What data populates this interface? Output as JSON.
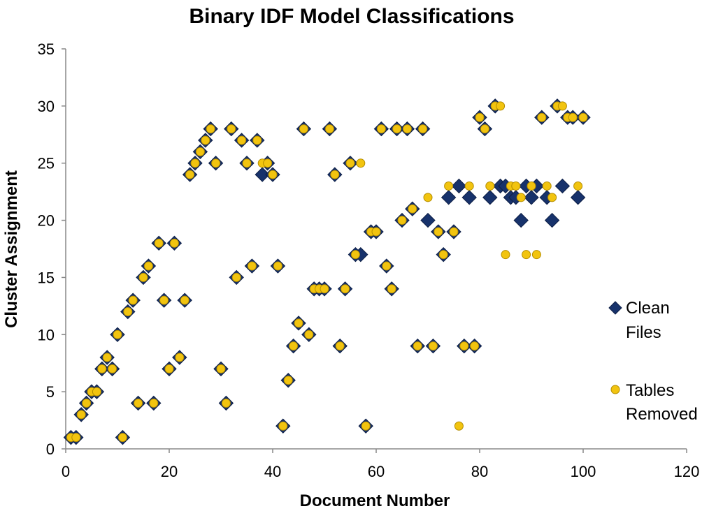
{
  "chart_data": {
    "type": "scatter",
    "title": "Binary IDF Model Classifications",
    "xlabel": "Document Number",
    "ylabel": "Cluster Assignment",
    "xlim": [
      0,
      120
    ],
    "ylim": [
      0,
      35
    ],
    "xticks": [
      0,
      20,
      40,
      60,
      80,
      100,
      120
    ],
    "yticks": [
      0,
      5,
      10,
      15,
      20,
      25,
      30,
      35
    ],
    "grid": false,
    "legend_position": "right",
    "colors": {
      "clean": "#17326b",
      "tables": "#f2c40f"
    },
    "series": [
      {
        "name": "Clean Files",
        "legend_lines": [
          "Clean",
          "Files"
        ],
        "marker": "diamond",
        "x": [
          1,
          2,
          3,
          4,
          5,
          6,
          7,
          8,
          9,
          10,
          11,
          12,
          13,
          14,
          15,
          16,
          17,
          18,
          19,
          20,
          21,
          22,
          23,
          24,
          25,
          26,
          27,
          28,
          29,
          30,
          31,
          32,
          33,
          34,
          35,
          36,
          37,
          38,
          39,
          40,
          41,
          42,
          43,
          44,
          45,
          46,
          47,
          48,
          49,
          50,
          51,
          52,
          53,
          54,
          55,
          56,
          57,
          58,
          59,
          60,
          61,
          62,
          63,
          64,
          65,
          66,
          67,
          68,
          69,
          70,
          71,
          72,
          73,
          74,
          75,
          76,
          77,
          78,
          79,
          80,
          81,
          82,
          83,
          84,
          85,
          86,
          87,
          88,
          89,
          90,
          91,
          92,
          93,
          94,
          95,
          96,
          97,
          98,
          99,
          100
        ],
        "y": [
          1,
          1,
          3,
          4,
          5,
          5,
          7,
          8,
          7,
          10,
          1,
          12,
          13,
          4,
          15,
          16,
          4,
          18,
          13,
          7,
          18,
          8,
          13,
          24,
          25,
          26,
          27,
          28,
          25,
          7,
          4,
          28,
          15,
          27,
          25,
          16,
          27,
          24,
          25,
          24,
          16,
          2,
          6,
          9,
          11,
          28,
          10,
          14,
          14,
          14,
          28,
          24,
          9,
          14,
          25,
          17,
          17,
          2,
          19,
          19,
          28,
          16,
          14,
          28,
          20,
          28,
          21,
          9,
          28,
          20,
          9,
          19,
          17,
          22,
          19,
          23,
          9,
          22,
          9,
          29,
          28,
          22,
          30,
          23,
          23,
          22,
          22,
          20,
          23,
          22,
          23,
          29,
          22,
          20,
          30,
          23,
          29,
          29,
          22,
          29
        ]
      },
      {
        "name": "Tables Removed",
        "legend_lines": [
          "Tables",
          "Removed"
        ],
        "marker": "circle",
        "x": [
          1,
          2,
          3,
          4,
          5,
          6,
          7,
          8,
          9,
          10,
          11,
          12,
          13,
          14,
          15,
          16,
          17,
          18,
          19,
          20,
          21,
          22,
          23,
          24,
          25,
          26,
          27,
          28,
          29,
          30,
          31,
          32,
          33,
          34,
          35,
          36,
          37,
          38,
          39,
          40,
          41,
          42,
          43,
          44,
          45,
          46,
          47,
          48,
          49,
          50,
          51,
          52,
          53,
          54,
          55,
          56,
          57,
          58,
          59,
          60,
          61,
          62,
          63,
          64,
          65,
          66,
          67,
          68,
          69,
          70,
          71,
          72,
          73,
          74,
          75,
          76,
          77,
          78,
          79,
          80,
          81,
          82,
          83,
          84,
          85,
          86,
          87,
          88,
          89,
          90,
          91,
          92,
          93,
          94,
          95,
          96,
          97,
          98,
          99,
          100
        ],
        "y": [
          1,
          1,
          3,
          4,
          5,
          5,
          7,
          8,
          7,
          10,
          1,
          12,
          13,
          4,
          15,
          16,
          4,
          18,
          13,
          7,
          18,
          8,
          13,
          24,
          25,
          26,
          27,
          28,
          25,
          7,
          4,
          28,
          15,
          27,
          25,
          16,
          27,
          25,
          25,
          24,
          16,
          2,
          6,
          9,
          11,
          28,
          10,
          14,
          14,
          14,
          28,
          24,
          9,
          14,
          25,
          17,
          25,
          2,
          19,
          19,
          28,
          16,
          14,
          28,
          20,
          28,
          21,
          9,
          28,
          22,
          9,
          19,
          17,
          23,
          19,
          2,
          9,
          23,
          9,
          29,
          28,
          23,
          30,
          30,
          17,
          23,
          23,
          22,
          17,
          23,
          17,
          29,
          23,
          22,
          30,
          30,
          29,
          29,
          23,
          29
        ]
      }
    ]
  }
}
